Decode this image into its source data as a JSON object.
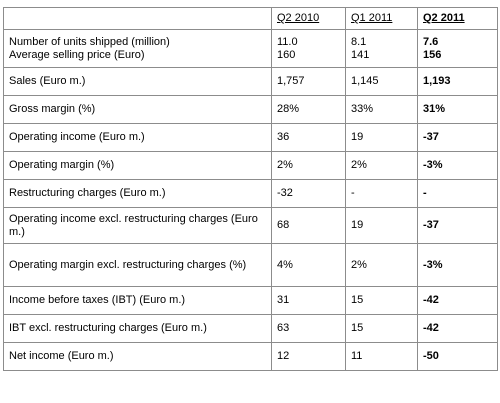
{
  "table": {
    "columns": [
      "Q2 2010",
      "Q1 2011",
      "Q2 2011"
    ],
    "rows": [
      {
        "label": "Number of units shipped (million)",
        "q2_2010": "11.0",
        "q1_2011": "8.1",
        "q2_2011": "7.6"
      },
      {
        "label": "Average selling price (Euro)",
        "q2_2010": "160",
        "q1_2011": "141",
        "q2_2011": "156"
      },
      {
        "label": "Sales (Euro m.)",
        "q2_2010": "1,757",
        "q1_2011": "1,145",
        "q2_2011": "1,193"
      },
      {
        "label": "Gross margin (%)",
        "q2_2010": "28%",
        "q1_2011": "33%",
        "q2_2011": "31%"
      },
      {
        "label": "Operating income (Euro m.)",
        "q2_2010": "36",
        "q1_2011": "19",
        "q2_2011": "-37"
      },
      {
        "label": "Operating margin (%)",
        "q2_2010": "2%",
        "q1_2011": "2%",
        "q2_2011": "-3%"
      },
      {
        "label": "Restructuring charges (Euro m.)",
        "q2_2010": "-32",
        "q1_2011": "-",
        "q2_2011": "-"
      },
      {
        "label": "Operating income excl. restructuring charges (Euro m.)",
        "q2_2010": "68",
        "q1_2011": "19",
        "q2_2011": "-37"
      },
      {
        "label": "Operating margin excl. restructuring charges (%)",
        "q2_2010": "4%",
        "q1_2011": "2%",
        "q2_2011": "-3%"
      },
      {
        "label": "Income before taxes (IBT) (Euro m.)",
        "q2_2010": "31",
        "q1_2011": "15",
        "q2_2011": "-42"
      },
      {
        "label": "IBT excl. restructuring charges (Euro m.)",
        "q2_2010": "63",
        "q1_2011": "15",
        "q2_2011": "-42"
      },
      {
        "label": "Net income (Euro m.)",
        "q2_2010": "12",
        "q1_2011": "11",
        "q2_2011": "-50"
      }
    ]
  }
}
